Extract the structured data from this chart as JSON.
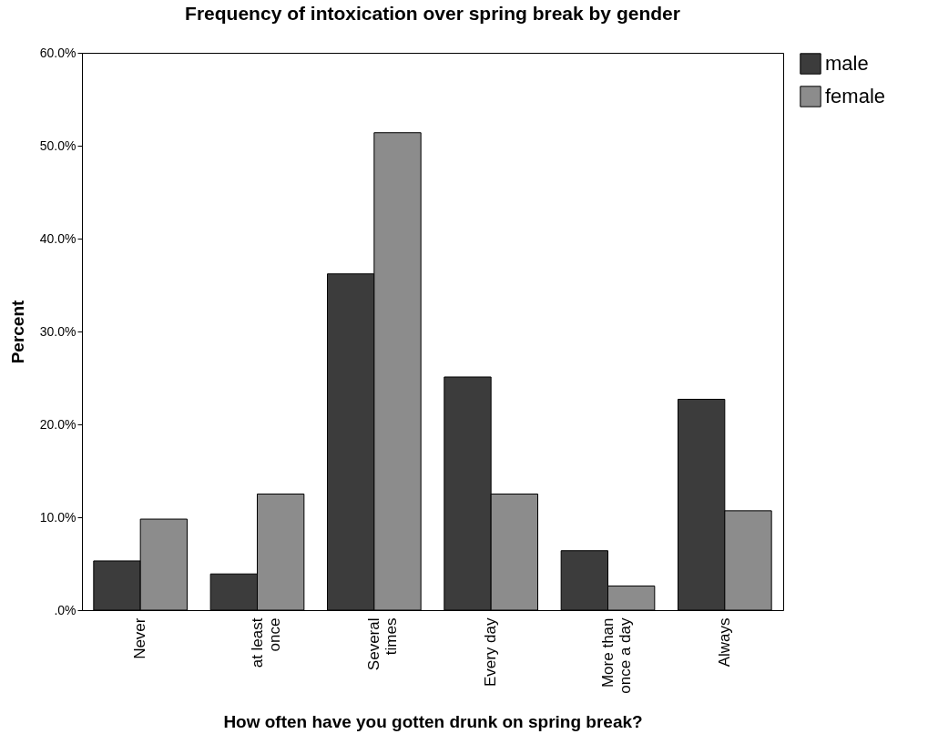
{
  "chart_data": {
    "type": "bar",
    "title": "Frequency of intoxication over spring break by gender",
    "xlabel": "How often have you gotten drunk on spring break?",
    "ylabel": "Percent",
    "categories": [
      "Never",
      "at least once",
      "Several times",
      "Every day",
      "More than once a day",
      "Always"
    ],
    "series": [
      {
        "name": "male",
        "color": "#3c3c3c",
        "values": [
          5.3,
          3.9,
          36.2,
          25.1,
          6.4,
          22.7
        ]
      },
      {
        "name": "female",
        "color": "#8c8c8c",
        "values": [
          9.8,
          12.5,
          51.4,
          12.5,
          2.6,
          10.7
        ]
      }
    ],
    "ylim": [
      0,
      60
    ],
    "yticks": [
      {
        "value": 0,
        "label": ".0%"
      },
      {
        "value": 10,
        "label": "10.0%"
      },
      {
        "value": 20,
        "label": "20.0%"
      },
      {
        "value": 30,
        "label": "30.0%"
      },
      {
        "value": 40,
        "label": "40.0%"
      },
      {
        "value": 50,
        "label": "50.0%"
      },
      {
        "value": 60,
        "label": "60.0%"
      }
    ],
    "grid": false,
    "legend": "top right"
  }
}
